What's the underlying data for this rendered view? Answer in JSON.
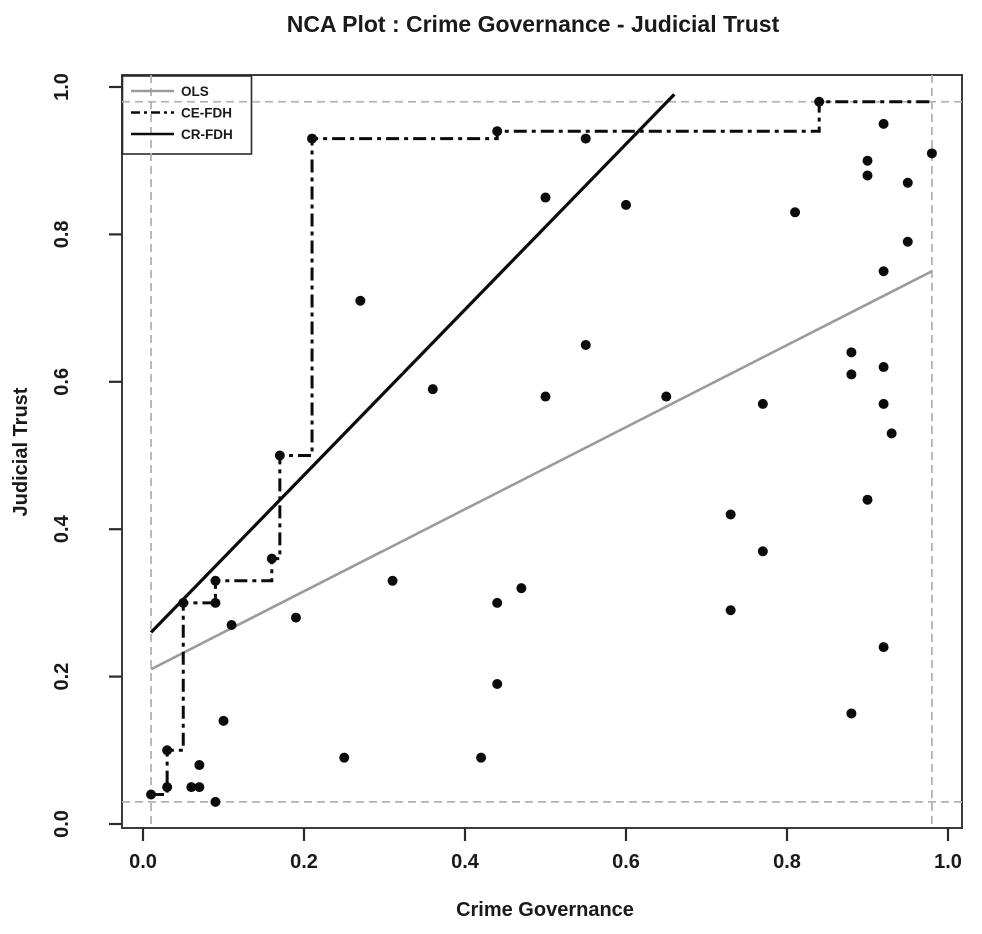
{
  "figure": {
    "title": "NCA Plot : Crime Governance - Judicial Trust"
  },
  "chart_data": {
    "type": "scatter",
    "title": "NCA Plot : Crime Governance - Judicial Trust",
    "xlabel": "Crime Governance",
    "ylabel": "Judicial Trust",
    "xlim": [
      0,
      1
    ],
    "ylim": [
      0,
      1
    ],
    "grid": false,
    "x_tick_labels": [
      "0.0",
      "0.2",
      "0.4",
      "0.6",
      "0.8",
      "1.0"
    ],
    "y_tick_labels": [
      "0.0",
      "0.2",
      "0.4",
      "0.6",
      "0.8",
      "1.0"
    ],
    "xticks": [
      0.0,
      0.2,
      0.4,
      0.6,
      0.8,
      1.0
    ],
    "yticks": [
      0.0,
      0.2,
      0.4,
      0.6,
      0.8,
      1.0
    ],
    "points": [
      [
        0.01,
        0.04
      ],
      [
        0.03,
        0.05
      ],
      [
        0.03,
        0.1
      ],
      [
        0.05,
        0.3
      ],
      [
        0.06,
        0.05
      ],
      [
        0.07,
        0.05
      ],
      [
        0.07,
        0.08
      ],
      [
        0.09,
        0.03
      ],
      [
        0.09,
        0.3
      ],
      [
        0.09,
        0.33
      ],
      [
        0.1,
        0.14
      ],
      [
        0.11,
        0.27
      ],
      [
        0.16,
        0.36
      ],
      [
        0.17,
        0.5
      ],
      [
        0.19,
        0.28
      ],
      [
        0.21,
        0.93
      ],
      [
        0.25,
        0.09
      ],
      [
        0.27,
        0.71
      ],
      [
        0.31,
        0.33
      ],
      [
        0.36,
        0.59
      ],
      [
        0.42,
        0.09
      ],
      [
        0.44,
        0.19
      ],
      [
        0.44,
        0.3
      ],
      [
        0.44,
        0.94
      ],
      [
        0.47,
        0.32
      ],
      [
        0.5,
        0.58
      ],
      [
        0.5,
        0.85
      ],
      [
        0.55,
        0.65
      ],
      [
        0.55,
        0.93
      ],
      [
        0.6,
        0.84
      ],
      [
        0.65,
        0.58
      ],
      [
        0.73,
        0.29
      ],
      [
        0.73,
        0.42
      ],
      [
        0.77,
        0.37
      ],
      [
        0.77,
        0.57
      ],
      [
        0.81,
        0.83
      ],
      [
        0.84,
        0.98
      ],
      [
        0.88,
        0.15
      ],
      [
        0.88,
        0.61
      ],
      [
        0.88,
        0.64
      ],
      [
        0.9,
        0.44
      ],
      [
        0.9,
        0.88
      ],
      [
        0.9,
        0.9
      ],
      [
        0.92,
        0.24
      ],
      [
        0.92,
        0.57
      ],
      [
        0.92,
        0.62
      ],
      [
        0.92,
        0.75
      ],
      [
        0.92,
        0.95
      ],
      [
        0.93,
        0.53
      ],
      [
        0.95,
        0.79
      ],
      [
        0.95,
        0.87
      ],
      [
        0.98,
        0.91
      ]
    ],
    "scope": {
      "x_min": 0.01,
      "x_max": 0.98,
      "y_min": 0.03,
      "y_max": 0.98
    },
    "lines": {
      "ols": {
        "label": "OLS",
        "style": "solid",
        "color": "#9b9b9b",
        "from": [
          0.01,
          0.21
        ],
        "to": [
          0.98,
          0.75
        ]
      },
      "cr_fdh": {
        "label": "CR-FDH",
        "style": "solid",
        "color": "#0b0b0b",
        "from": [
          0.01,
          0.26
        ],
        "to": [
          0.66,
          0.99
        ]
      },
      "ce_fdh": {
        "label": "CE-FDH",
        "style": "dashdot",
        "color": "#0b0b0b",
        "path": [
          [
            0.01,
            0.04
          ],
          [
            0.03,
            0.04
          ],
          [
            0.03,
            0.1
          ],
          [
            0.05,
            0.1
          ],
          [
            0.05,
            0.3
          ],
          [
            0.09,
            0.3
          ],
          [
            0.09,
            0.33
          ],
          [
            0.16,
            0.33
          ],
          [
            0.16,
            0.36
          ],
          [
            0.17,
            0.36
          ],
          [
            0.17,
            0.5
          ],
          [
            0.21,
            0.5
          ],
          [
            0.21,
            0.93
          ],
          [
            0.44,
            0.93
          ],
          [
            0.44,
            0.94
          ],
          [
            0.84,
            0.94
          ],
          [
            0.84,
            0.98
          ],
          [
            0.98,
            0.98
          ]
        ]
      }
    },
    "legend": {
      "position": "top-left",
      "entries": [
        {
          "label": "OLS",
          "color": "#9b9b9b",
          "style": "solid"
        },
        {
          "label": "CE-FDH",
          "color": "#0b0b0b",
          "style": "dashdot"
        },
        {
          "label": "CR-FDH",
          "color": "#0b0b0b",
          "style": "solid"
        }
      ]
    },
    "colors": {
      "point": "#0b0b0b",
      "scope_dash": "#b2b2b2",
      "plot_border": "#3c3c3c",
      "background": "#ffffff"
    }
  }
}
